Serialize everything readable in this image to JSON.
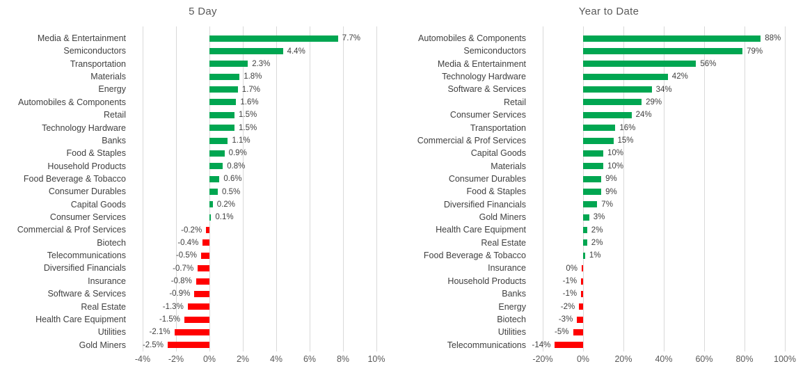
{
  "colors": {
    "positive_bar": "#00A651",
    "negative_bar": "#FF0000",
    "gridline": "#D9D9D9",
    "title_text": "#595959",
    "category_text": "#404040",
    "tick_text": "#595959",
    "value_text": "#3F3F3F",
    "background": "#FFFFFF"
  },
  "chart_data": [
    {
      "type": "bar",
      "orientation": "horizontal",
      "title": "5 Day",
      "unit": "%",
      "xlim": [
        -4,
        10
      ],
      "xtick_values": [
        -4,
        -2,
        0,
        2,
        4,
        6,
        8,
        10
      ],
      "xtick_labels": [
        "-4%",
        "-2%",
        "0%",
        "2%",
        "4%",
        "6%",
        "8%",
        "10%"
      ],
      "grid": true,
      "legend": "none",
      "categories": [
        "Media & Entertainment",
        "Semiconductors",
        "Transportation",
        "Materials",
        "Energy",
        "Automobiles & Components",
        "Retail",
        "Technology Hardware",
        "Banks",
        "Food & Staples",
        "Household Products",
        "Food Beverage & Tobacco",
        "Consumer Durables",
        "Capital Goods",
        "Consumer Services",
        "Commercial & Prof Services",
        "Biotech",
        "Telecommunications",
        "Diversified Financials",
        "Insurance",
        "Software & Services",
        "Real Estate",
        "Health Care Equipment",
        "Utilities",
        "Gold Miners"
      ],
      "values": [
        7.7,
        4.4,
        2.3,
        1.8,
        1.7,
        1.6,
        1.5,
        1.5,
        1.1,
        0.9,
        0.8,
        0.6,
        0.5,
        0.2,
        0.1,
        -0.2,
        -0.4,
        -0.5,
        -0.7,
        -0.8,
        -0.9,
        -1.3,
        -1.5,
        -2.1,
        -2.5
      ],
      "value_labels": [
        "7.7%",
        "4.4%",
        "2.3%",
        "1.8%",
        "1.7%",
        "1.6%",
        "1.5%",
        "1.5%",
        "1.1%",
        "0.9%",
        "0.8%",
        "0.6%",
        "0.5%",
        "0.2%",
        "0.1%",
        "-0.2%",
        "-0.4%",
        "-0.5%",
        "-0.7%",
        "-0.8%",
        "-0.9%",
        "-1.3%",
        "-1.5%",
        "-2.1%",
        "-2.5%"
      ]
    },
    {
      "type": "bar",
      "orientation": "horizontal",
      "title": "Year to Date",
      "unit": "%",
      "xlim": [
        -20,
        100
      ],
      "xtick_values": [
        -20,
        0,
        20,
        40,
        60,
        80,
        100
      ],
      "xtick_labels": [
        "-20%",
        "0%",
        "20%",
        "40%",
        "60%",
        "80%",
        "100%"
      ],
      "grid": true,
      "legend": "none",
      "categories": [
        "Automobiles & Components",
        "Semiconductors",
        "Media & Entertainment",
        "Technology Hardware",
        "Software & Services",
        "Retail",
        "Consumer Services",
        "Transportation",
        "Commercial & Prof Services",
        "Capital Goods",
        "Materials",
        "Consumer Durables",
        "Food & Staples",
        "Diversified Financials",
        "Gold Miners",
        "Health Care Equipment",
        "Real Estate",
        "Food Beverage & Tobacco",
        "Insurance",
        "Household Products",
        "Banks",
        "Energy",
        "Biotech",
        "Utilities",
        "Telecommunications"
      ],
      "values": [
        88,
        79,
        56,
        42,
        34,
        29,
        24,
        16,
        15,
        10,
        10,
        9,
        9,
        7,
        3,
        2,
        2,
        1,
        0,
        -1,
        -1,
        -2,
        -3,
        -5,
        -14
      ],
      "value_labels": [
        "88%",
        "79%",
        "56%",
        "42%",
        "34%",
        "29%",
        "24%",
        "16%",
        "15%",
        "10%",
        "10%",
        "9%",
        "9%",
        "7%",
        "3%",
        "2%",
        "2%",
        "1%",
        "0%",
        "-1%",
        "-1%",
        "-2%",
        "-3%",
        "-5%",
        "-14%"
      ]
    }
  ]
}
